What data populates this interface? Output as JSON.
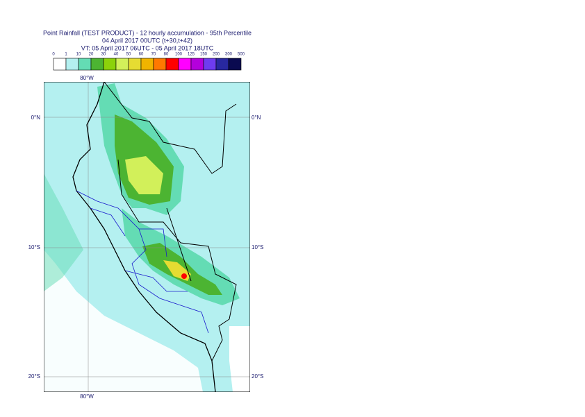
{
  "header": {
    "title": "Point Rainfall (TEST PRODUCT) - 12 hourly accumulation - 95th Percentile",
    "subtitle": "04 April 2017 00UTC (t+30,t+42)",
    "valid_time": "VT: 05 April 2017 06UTC - 05 April 2017 18UTC"
  },
  "legend": {
    "labels": [
      0,
      1,
      10,
      20,
      30,
      40,
      50,
      60,
      70,
      80,
      100,
      125,
      150,
      200,
      300,
      500
    ],
    "colors": [
      "#ffffff",
      "#b4f0f0",
      "#64dcb4",
      "#4cb432",
      "#8cd20a",
      "#d2f05a",
      "#e6dc32",
      "#f0b400",
      "#ff7800",
      "#ff0000",
      "#ff00ff",
      "#b400dc",
      "#6e3cf0",
      "#2828a0",
      "#0a0a50"
    ]
  },
  "map": {
    "lon_labels": [
      "80°W"
    ],
    "lat_labels": [
      "0°N",
      "10°S",
      "20°S"
    ]
  }
}
